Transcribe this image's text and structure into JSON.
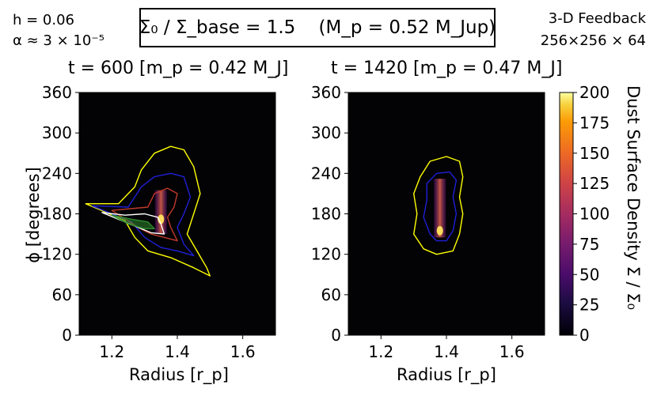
{
  "params": {
    "h": "h = 0.06",
    "alpha": "α ≈ 3 × 10⁻⁵"
  },
  "header": {
    "title": "Σ₀ / Σ_base = 1.5    (M_p = 0.52 M_Jup)",
    "feedback": "3-D Feedback",
    "resolution": "256×256 × 64"
  },
  "colors": {
    "background_field": "#030305",
    "contour_yellow": "#ffff00",
    "contour_blue": "#1f1fd6",
    "contour_red": "#c0392b",
    "contour_white": "#ffffff",
    "contour_green": "#2e8b2e"
  },
  "colorbar": {
    "label": "Dust Surface Density   Σ / Σ₀",
    "ticks": [
      "0",
      "25",
      "50",
      "75",
      "100",
      "125",
      "150",
      "175",
      "200"
    ],
    "range": [
      0,
      200
    ],
    "colormap": "inferno"
  },
  "chart_data": [
    {
      "type": "heatmap",
      "title": "t = 600 [m_p = 0.42 M_J]",
      "xlabel": "Radius [r_p]",
      "ylabel": "ϕ [degrees]",
      "xlim": [
        1.1,
        1.7
      ],
      "ylim": [
        0,
        360
      ],
      "xticks": [
        "1.2",
        "1.4",
        "1.6"
      ],
      "yticks": [
        "0",
        "60",
        "120",
        "180",
        "240",
        "300",
        "360"
      ],
      "peak_location": {
        "r": 1.35,
        "phi": 172
      },
      "peak_value": 200,
      "contours": [
        {
          "color": "yellow",
          "points": [
            [
              1.22,
              195
            ],
            [
              1.27,
              220
            ],
            [
              1.29,
              245
            ],
            [
              1.33,
              270
            ],
            [
              1.38,
              280
            ],
            [
              1.42,
              275
            ],
            [
              1.45,
              250
            ],
            [
              1.47,
              210
            ],
            [
              1.45,
              180
            ],
            [
              1.43,
              150
            ],
            [
              1.46,
              125
            ],
            [
              1.49,
              100
            ],
            [
              1.5,
              88
            ],
            [
              1.45,
              100
            ],
            [
              1.38,
              115
            ],
            [
              1.31,
              125
            ],
            [
              1.27,
              145
            ],
            [
              1.24,
              170
            ],
            [
              1.12,
              195
            ],
            [
              1.22,
              195
            ]
          ]
        },
        {
          "color": "blue",
          "points": [
            [
              1.25,
              190
            ],
            [
              1.29,
              220
            ],
            [
              1.33,
              235
            ],
            [
              1.38,
              240
            ],
            [
              1.42,
              235
            ],
            [
              1.44,
              205
            ],
            [
              1.42,
              180
            ],
            [
              1.4,
              160
            ],
            [
              1.42,
              135
            ],
            [
              1.45,
              118
            ],
            [
              1.4,
              125
            ],
            [
              1.35,
              130
            ],
            [
              1.3,
              145
            ],
            [
              1.26,
              168
            ],
            [
              1.14,
              192
            ],
            [
              1.25,
              190
            ]
          ]
        },
        {
          "color": "red",
          "points": [
            [
              1.31,
              190
            ],
            [
              1.33,
              210
            ],
            [
              1.37,
              218
            ],
            [
              1.4,
              210
            ],
            [
              1.39,
              190
            ],
            [
              1.37,
              175
            ],
            [
              1.38,
              160
            ],
            [
              1.4,
              140
            ],
            [
              1.36,
              145
            ],
            [
              1.32,
              150
            ],
            [
              1.28,
              160
            ],
            [
              1.2,
              185
            ],
            [
              1.31,
              190
            ]
          ]
        },
        {
          "color": "white",
          "points": [
            [
              1.17,
              182
            ],
            [
              1.24,
              178
            ],
            [
              1.3,
              180
            ],
            [
              1.34,
              175
            ],
            [
              1.35,
              165
            ],
            [
              1.36,
              150
            ],
            [
              1.32,
              152
            ],
            [
              1.28,
              160
            ],
            [
              1.17,
              182
            ]
          ]
        },
        {
          "color": "green",
          "points": [
            [
              1.2,
              178
            ],
            [
              1.26,
              172
            ],
            [
              1.31,
              168
            ],
            [
              1.33,
              158
            ],
            [
              1.3,
              158
            ],
            [
              1.25,
              165
            ],
            [
              1.2,
              178
            ]
          ]
        }
      ]
    },
    {
      "type": "heatmap",
      "title": "t = 1420 [m_p = 0.47 M_J]",
      "xlabel": "Radius [r_p]",
      "ylabel": "",
      "xlim": [
        1.1,
        1.7
      ],
      "ylim": [
        0,
        360
      ],
      "xticks": [
        "1.2",
        "1.4",
        "1.6"
      ],
      "yticks": [
        "0",
        "60",
        "120",
        "180",
        "240",
        "300",
        "360"
      ],
      "peak_location": {
        "r": 1.38,
        "phi": 155
      },
      "peak_value": 200,
      "contours": [
        {
          "color": "yellow",
          "points": [
            [
              1.32,
              235
            ],
            [
              1.35,
              258
            ],
            [
              1.4,
              265
            ],
            [
              1.44,
              258
            ],
            [
              1.45,
              235
            ],
            [
              1.44,
              205
            ],
            [
              1.45,
              180
            ],
            [
              1.44,
              150
            ],
            [
              1.42,
              125
            ],
            [
              1.37,
              120
            ],
            [
              1.33,
              128
            ],
            [
              1.3,
              150
            ],
            [
              1.31,
              180
            ],
            [
              1.3,
              210
            ],
            [
              1.32,
              235
            ]
          ]
        },
        {
          "color": "blue",
          "points": [
            [
              1.34,
              225
            ],
            [
              1.37,
              240
            ],
            [
              1.41,
              242
            ],
            [
              1.43,
              230
            ],
            [
              1.42,
              205
            ],
            [
              1.43,
              180
            ],
            [
              1.42,
              155
            ],
            [
              1.4,
              140
            ],
            [
              1.37,
              140
            ],
            [
              1.35,
              150
            ],
            [
              1.33,
              175
            ],
            [
              1.34,
              200
            ],
            [
              1.34,
              225
            ]
          ]
        }
      ]
    }
  ]
}
